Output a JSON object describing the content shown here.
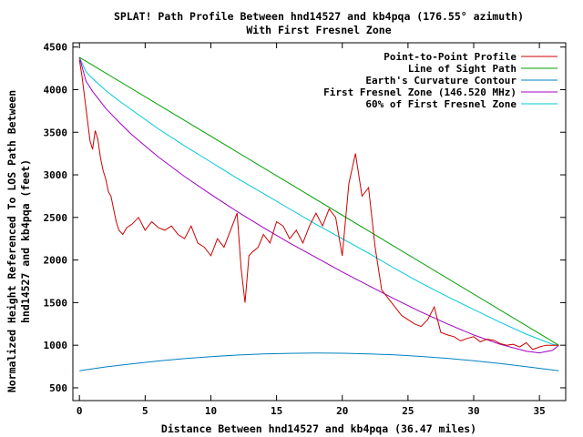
{
  "chart_data": {
    "type": "line",
    "title_line1": "SPLAT! Path Profile Between hnd14527 and kb4pqa (176.55° azimuth)",
    "title_line2": "With First Fresnel Zone",
    "xlabel": "Distance Between hnd14527 and kb4pqa (36.47 miles)",
    "ylabel_line1": "Normalized Height Referenced To LOS Path Between",
    "ylabel_line2": "hnd14527 and kb4pqa (feet)",
    "xlim": [
      -0.5,
      37
    ],
    "ylim": [
      350,
      4550
    ],
    "xticks": [
      0,
      5,
      10,
      15,
      20,
      25,
      30,
      35
    ],
    "yticks": [
      500,
      1000,
      1500,
      2000,
      2500,
      3000,
      3500,
      4000,
      4500
    ],
    "grid": false,
    "legend_position": "top-right",
    "series": [
      {
        "name": "Point-to-Point Profile",
        "color": "#cc0000",
        "x": [
          0,
          0.2,
          0.4,
          0.6,
          0.8,
          1.0,
          1.2,
          1.4,
          1.6,
          1.8,
          2.0,
          2.2,
          2.4,
          2.6,
          2.8,
          3.0,
          3.3,
          3.6,
          4.0,
          4.5,
          5.0,
          5.5,
          6.0,
          6.5,
          7.0,
          7.5,
          8.0,
          8.5,
          9.0,
          9.5,
          10.0,
          10.5,
          11.0,
          11.5,
          12.0,
          12.3,
          12.6,
          12.9,
          13.2,
          13.6,
          14.0,
          14.5,
          15.0,
          15.5,
          16.0,
          16.5,
          17.0,
          17.5,
          18.0,
          18.5,
          19.0,
          19.5,
          20.0,
          20.5,
          21.0,
          21.5,
          22.0,
          22.5,
          23.0,
          23.5,
          24.0,
          24.5,
          25.0,
          25.5,
          26.0,
          26.5,
          27.0,
          27.5,
          28.0,
          28.5,
          29.0,
          29.5,
          30.0,
          30.5,
          31.0,
          31.5,
          32.0,
          32.5,
          33.0,
          33.5,
          34.0,
          34.5,
          35.0,
          35.5,
          36.0,
          36.47
        ],
        "y": [
          4350,
          4150,
          3900,
          3650,
          3400,
          3300,
          3520,
          3420,
          3200,
          3050,
          2950,
          2800,
          2750,
          2600,
          2450,
          2350,
          2300,
          2380,
          2420,
          2500,
          2350,
          2450,
          2380,
          2350,
          2400,
          2300,
          2250,
          2400,
          2200,
          2150,
          2050,
          2250,
          2150,
          2350,
          2550,
          1900,
          1500,
          2050,
          2100,
          2150,
          2300,
          2200,
          2450,
          2400,
          2250,
          2350,
          2200,
          2400,
          2550,
          2400,
          2600,
          2500,
          2050,
          2900,
          3250,
          2750,
          2850,
          2150,
          1650,
          1550,
          1450,
          1350,
          1300,
          1250,
          1220,
          1300,
          1450,
          1150,
          1120,
          1100,
          1050,
          1080,
          1100,
          1040,
          1070,
          1060,
          1020,
          1000,
          1010,
          980,
          1030,
          950,
          980,
          1000,
          1000,
          1000
        ]
      },
      {
        "name": "Line of Sight Path",
        "color": "#00a000",
        "x": [
          0,
          36.47
        ],
        "y": [
          4380,
          1000
        ]
      },
      {
        "name": "Earth's Curvature Contour",
        "color": "#0080c0",
        "x": [
          0,
          2,
          4,
          6,
          8,
          10,
          12,
          14,
          16,
          18,
          20,
          22,
          24,
          26,
          28,
          30,
          32,
          34,
          36.47
        ],
        "y": [
          700,
          745,
          782,
          815,
          843,
          866,
          884,
          897,
          905,
          908,
          906,
          898,
          886,
          868,
          846,
          818,
          786,
          749,
          700
        ]
      },
      {
        "name": "First Fresnel Zone (146.520 MHz)",
        "color": "#a000c0",
        "x": [
          0,
          0.5,
          1,
          2,
          3,
          4,
          6,
          8,
          10,
          12,
          14,
          16,
          18,
          20,
          22,
          24,
          26,
          28,
          30,
          32,
          34,
          35,
          36,
          36.47
        ],
        "y": [
          4380,
          4100,
          3980,
          3780,
          3620,
          3470,
          3210,
          2980,
          2770,
          2570,
          2380,
          2200,
          2030,
          1860,
          1700,
          1540,
          1390,
          1250,
          1120,
          1010,
          930,
          910,
          940,
          1000
        ]
      },
      {
        "name": "60% of First Fresnel Zone",
        "color": "#00c8d8",
        "x": [
          0,
          0.5,
          1,
          2,
          3,
          4,
          6,
          8,
          10,
          12,
          14,
          16,
          18,
          20,
          22,
          24,
          26,
          28,
          30,
          32,
          34,
          35,
          36,
          36.47
        ],
        "y": [
          4380,
          4210,
          4130,
          3990,
          3870,
          3760,
          3540,
          3340,
          3150,
          2960,
          2780,
          2600,
          2420,
          2250,
          2080,
          1900,
          1730,
          1570,
          1420,
          1270,
          1130,
          1070,
          1010,
          1000
        ]
      }
    ]
  }
}
